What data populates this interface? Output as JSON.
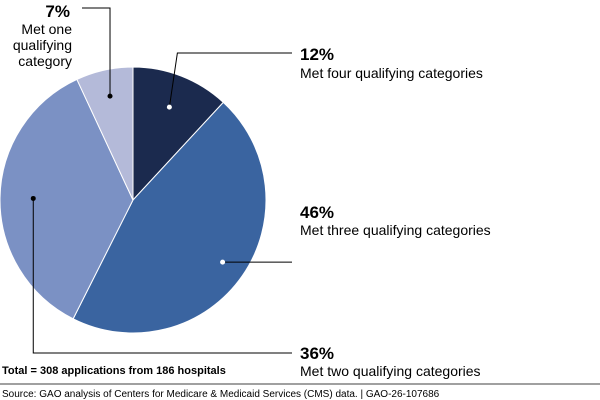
{
  "chart_data": {
    "type": "pie",
    "slices": [
      {
        "percent_label": "12%",
        "label": "Met four qualifying categories",
        "value": 12,
        "color": "#1b2a4e"
      },
      {
        "percent_label": "46%",
        "label": "Met three qualifying categories",
        "value": 46,
        "color": "#3a64a0"
      },
      {
        "percent_label": "36%",
        "label": "Met two qualifying categories",
        "value": 36,
        "color": "#7b91c4"
      },
      {
        "percent_label": "7%",
        "label_lines": [
          "Met one",
          "qualifying",
          "category"
        ],
        "value": 7,
        "color": "#b4bad9"
      }
    ],
    "total_note": "Total = 308 applications from 186 hospitals"
  },
  "footer": {
    "source": "Source: GAO analysis of Centers for Medicare & Medicaid Services (CMS) data.  |  GAO-26-107686"
  }
}
